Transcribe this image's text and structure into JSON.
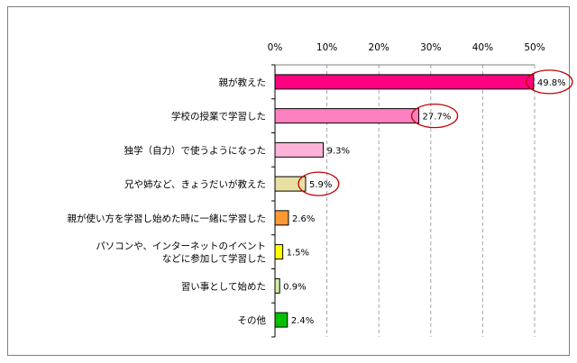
{
  "chart_data": {
    "type": "bar",
    "orientation": "horizontal",
    "title": "",
    "xlabel": "",
    "ylabel": "",
    "xlim": [
      0,
      50
    ],
    "x_ticks": [
      "0%",
      "10%",
      "20%",
      "30%",
      "40%",
      "50%"
    ],
    "x_tick_values": [
      0,
      10,
      20,
      30,
      40,
      50
    ],
    "grid": "vertical dashed",
    "categories": [
      [
        "親が教えた"
      ],
      [
        "学校の授業で学習した"
      ],
      [
        "独学（自力）で使うようになった"
      ],
      [
        "兄や姉など、きょうだいが教えた"
      ],
      [
        "親が使い方を学習し始めた時に一緒に学習した"
      ],
      [
        "パソコンや、インターネットのイベント",
        "などに参加して学習した"
      ],
      [
        "習い事として始めた"
      ],
      [
        "その他"
      ]
    ],
    "values": [
      49.8,
      27.7,
      9.3,
      5.9,
      2.6,
      1.5,
      0.9,
      2.4
    ],
    "value_labels": [
      "49.8%",
      "27.7%",
      "9.3%",
      "5.9%",
      "2.6%",
      "1.5%",
      "0.9%",
      "2.4%"
    ],
    "colors": [
      "#ff0080",
      "#ff80c0",
      "#ffb3d9",
      "#e8e0a0",
      "#ff9933",
      "#ffff00",
      "#d0f0a0",
      "#00c000"
    ],
    "highlighted_labels": [
      0,
      1,
      3
    ],
    "highlight_color": "#c00000"
  }
}
